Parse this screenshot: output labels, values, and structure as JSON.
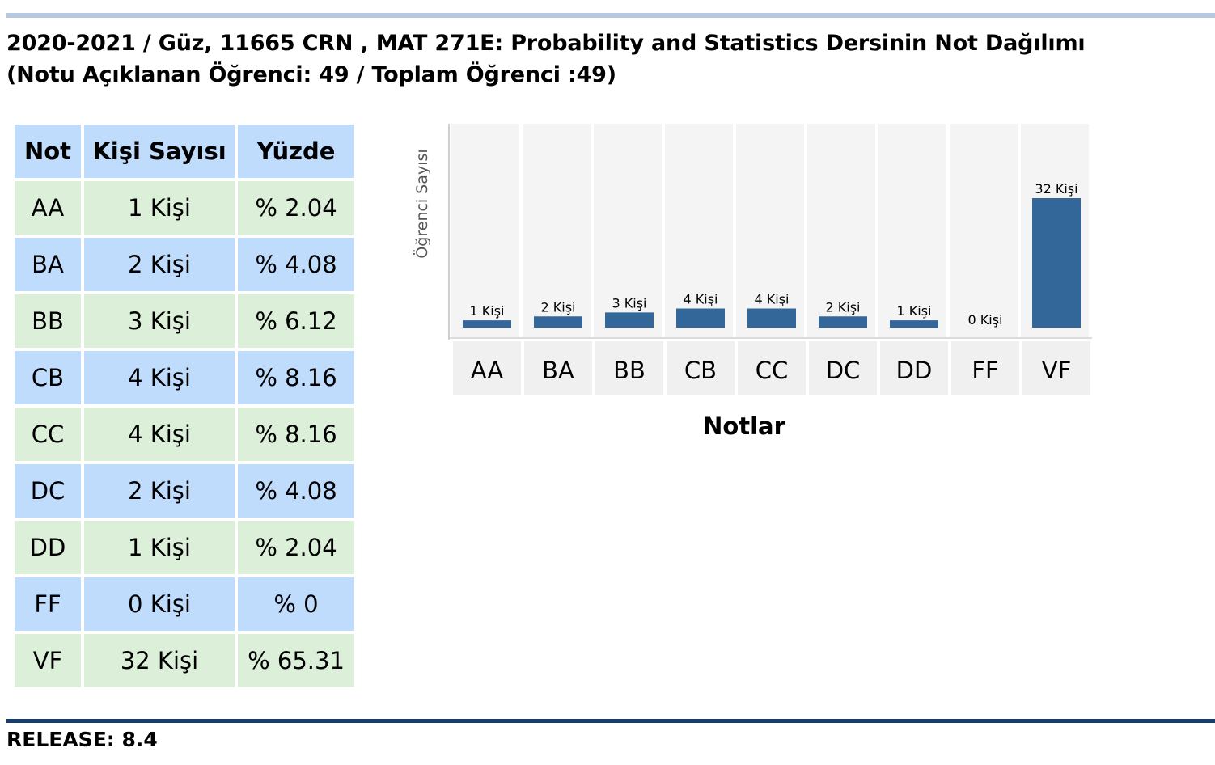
{
  "header": {
    "line1": "2020-2021 / Güz, 11665 CRN , MAT 271E: Probability and Statistics Dersinin Not Dağılımı",
    "line2": "(Notu Açıklanan Öğrenci: 49 / Toplam Öğrenci :49)"
  },
  "table": {
    "headers": [
      "Not",
      "Kişi Sayısı",
      "Yüzde"
    ],
    "rows": [
      [
        "AA",
        "1 Kişi",
        "% 2.04"
      ],
      [
        "BA",
        "2 Kişi",
        "% 4.08"
      ],
      [
        "BB",
        "3 Kişi",
        "% 6.12"
      ],
      [
        "CB",
        "4 Kişi",
        "% 8.16"
      ],
      [
        "CC",
        "4 Kişi",
        "% 8.16"
      ],
      [
        "DC",
        "2 Kişi",
        "% 4.08"
      ],
      [
        "DD",
        "1 Kişi",
        "% 2.04"
      ],
      [
        "FF",
        "0 Kişi",
        "% 0"
      ],
      [
        "VF",
        "32 Kişi",
        "% 65.31"
      ]
    ],
    "colors": {
      "header": "#bfdcfd",
      "odd_row": "#dcefd9",
      "even_row": "#bfdcfd"
    }
  },
  "chart_data": {
    "type": "bar",
    "categories": [
      "AA",
      "BA",
      "BB",
      "CB",
      "CC",
      "DC",
      "DD",
      "FF",
      "VF"
    ],
    "values": [
      1,
      2,
      3,
      4,
      4,
      2,
      1,
      0,
      32
    ],
    "data_labels": [
      "1 Kişi",
      "2 Kişi",
      "3 Kişi",
      "4 Kişi",
      "4 Kişi",
      "2 Kişi",
      "1 Kişi",
      "0 Kişi",
      "32 Kişi"
    ],
    "xlabel": "Notlar",
    "ylabel": "Öğrenci Sayısı",
    "ylim": [
      0,
      32
    ],
    "bar_color": "#336699",
    "grid": false
  },
  "footer": {
    "release": "RELEASE: 8.4"
  }
}
